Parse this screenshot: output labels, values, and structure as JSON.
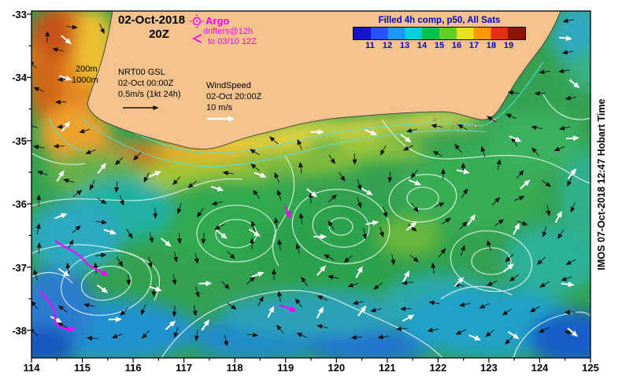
{
  "header": {
    "date": "02-Oct-2018",
    "time": "20Z"
  },
  "legend": {
    "argo": "Argo",
    "drifters_line1": "drifters@12h",
    "drifters_line2": "to 03/10 12Z"
  },
  "colorbar": {
    "title": "Filled 4h comp, p50, All Sats",
    "ticks": [
      "11",
      "12",
      "13",
      "14",
      "15",
      "16",
      "17",
      "18",
      "19"
    ],
    "colors": [
      "#1414c8",
      "#2850ff",
      "#1e96ff",
      "#00d2dc",
      "#00c050",
      "#64cd28",
      "#e8e020",
      "#ff9800",
      "#e03010",
      "#8c1400"
    ],
    "text_color": "#0000cc"
  },
  "annotations": {
    "depth_200m": "200m",
    "depth_1000m": "1000m",
    "current_title": "NRT00 GSL",
    "current_time": "02-Oct 00:00Z",
    "current_scale": "0.5m/s (1kt 24h)",
    "wind_title": "WindSpeed",
    "wind_time": "02-Oct 20:00Z",
    "wind_scale": "10 m/s"
  },
  "side_caption": "IMOS 07-Oct-2018 12:47 Hobart Time",
  "axes": {
    "x_ticks": [
      "114",
      "115",
      "116",
      "117",
      "118",
      "119",
      "120",
      "121",
      "122",
      "123",
      "124",
      "125"
    ],
    "y_ticks": [
      "-33",
      "-34",
      "-35",
      "-36",
      "-37",
      "-38"
    ]
  },
  "map": {
    "land_color": "#f4c28c",
    "magenta": "#ff00ff",
    "current_vector_color": "#101010",
    "wind_vector_color": "#ffffff",
    "ssh_contour_color": "#ffffff",
    "depth_contour_color": "#55e0e0"
  }
}
